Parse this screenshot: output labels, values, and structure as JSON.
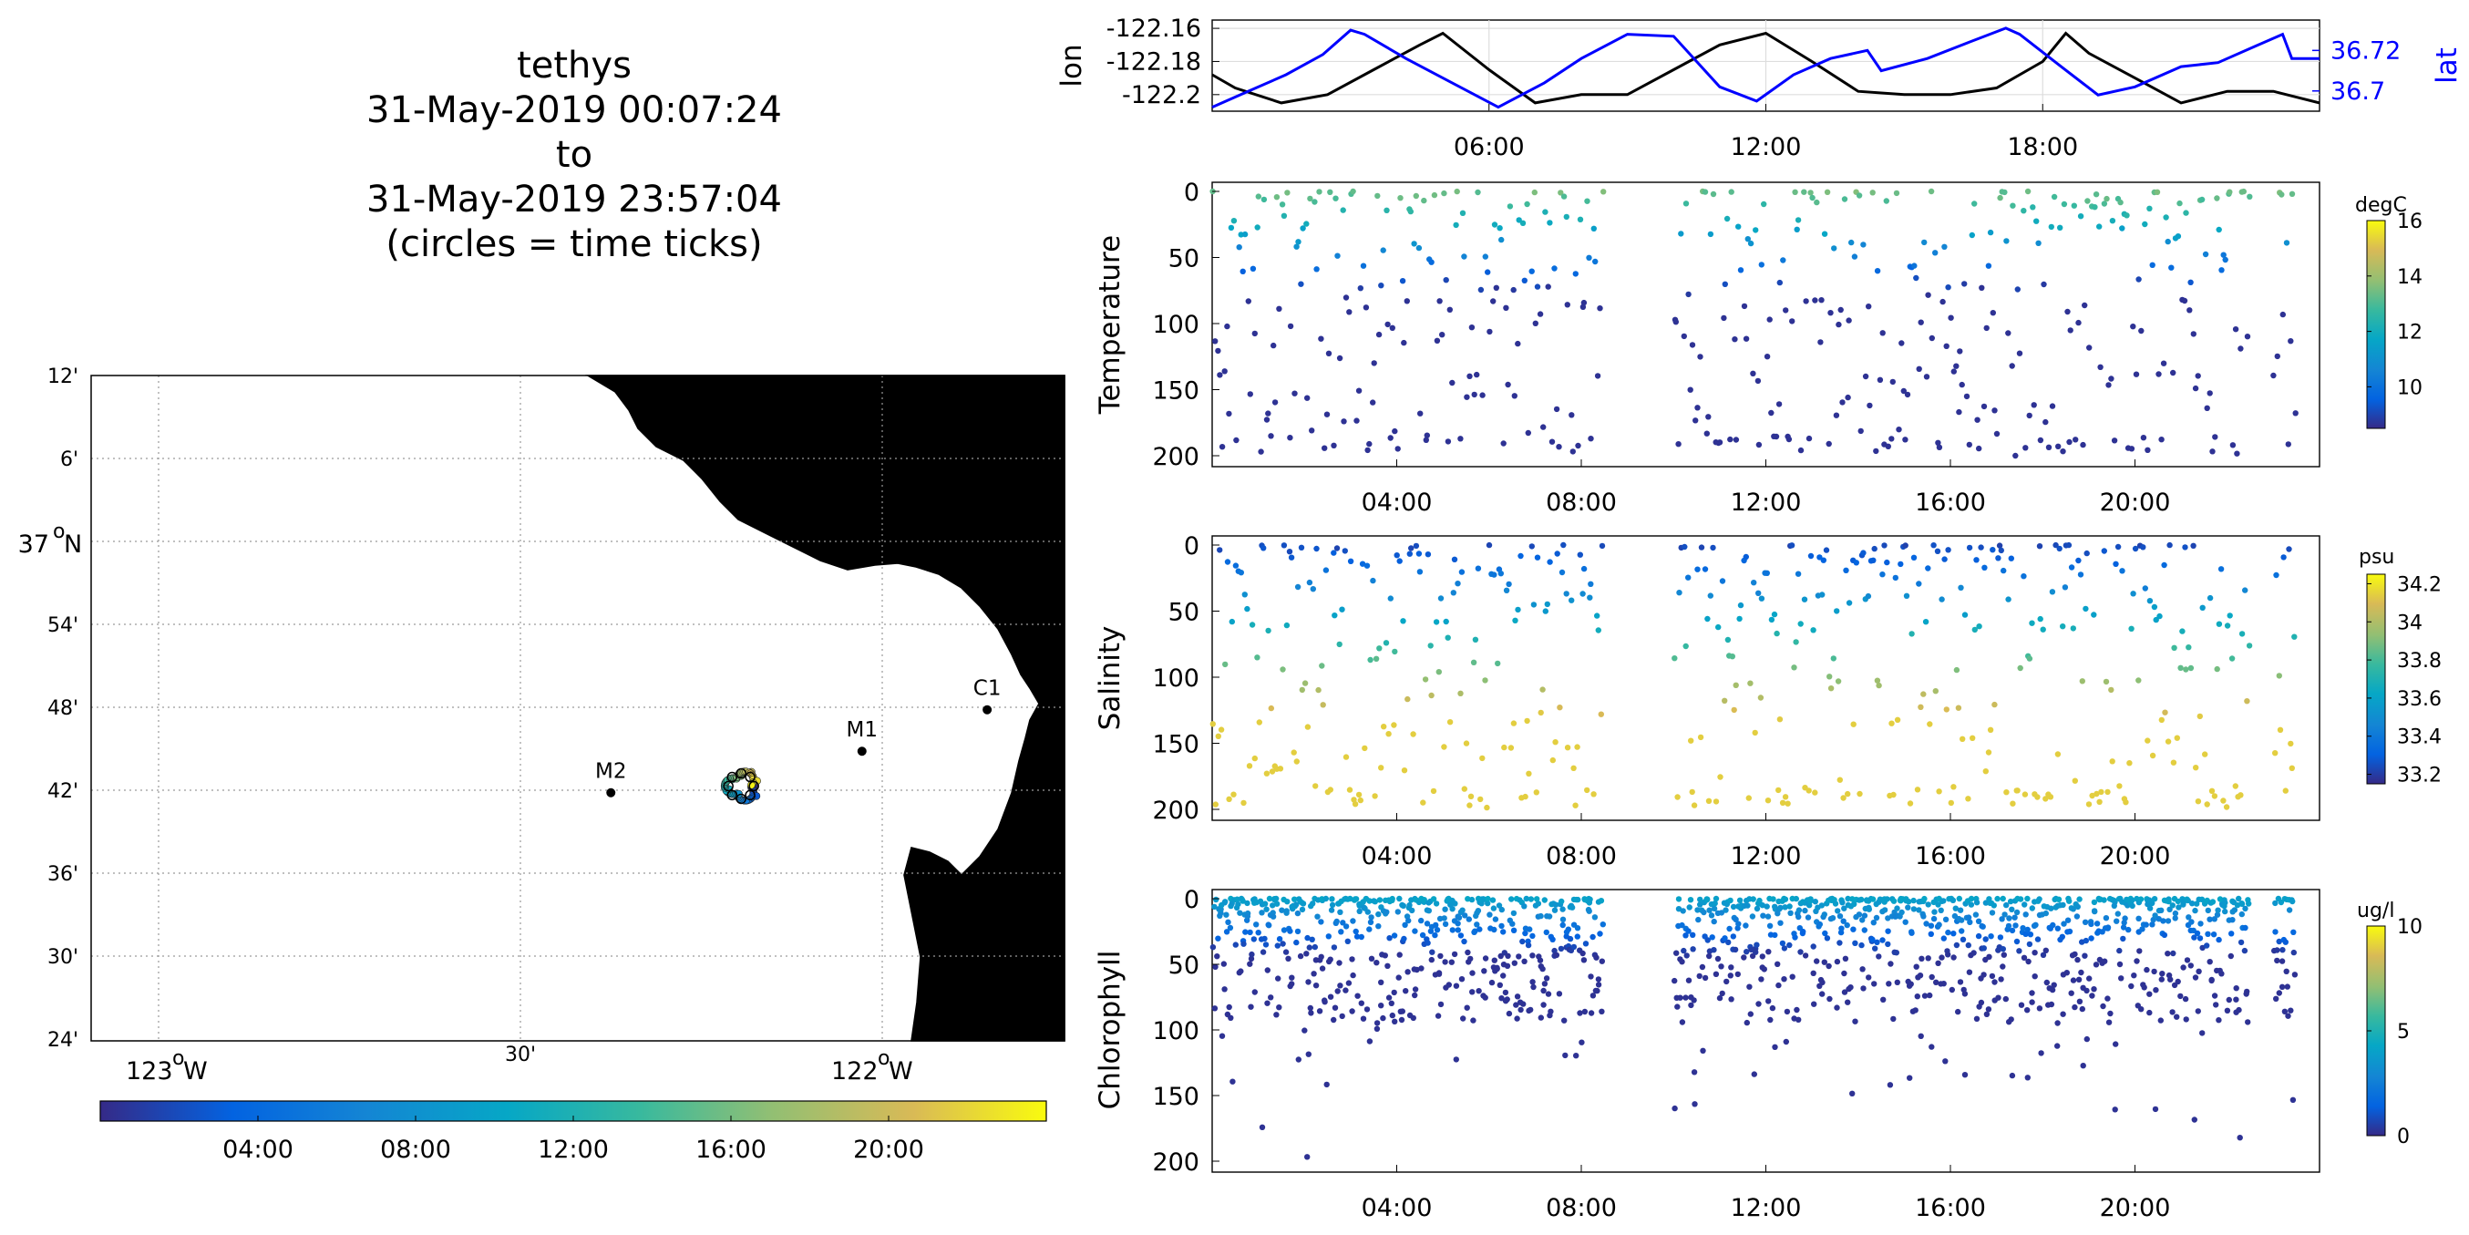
{
  "title": {
    "lines": [
      "tethys",
      "31-May-2019 00:07:24",
      "to",
      "31-May-2019 23:57:04",
      "(circles = time ticks)"
    ]
  },
  "map": {
    "lat_ticks": [
      "12'",
      "6'",
      "37",
      "54'",
      "48'",
      "42'",
      "36'",
      "30'",
      "24'"
    ],
    "lat_deg_sup": "o",
    "lat_hemi": "N",
    "lon_ticks": [
      {
        "label": "123",
        "sup": "o",
        "hemi": "W"
      },
      {
        "label": "30'",
        "sup": "",
        "hemi": ""
      },
      {
        "label": "122",
        "sup": "o",
        "hemi": "W"
      }
    ],
    "stations": [
      {
        "name": "M2",
        "lon": -122.375,
        "lat": 36.697
      },
      {
        "name": "M1",
        "lon": -122.028,
        "lat": 36.747
      },
      {
        "name": "C1",
        "lon": -121.855,
        "lat": 36.797
      }
    ],
    "track_center": {
      "lon": -122.195,
      "lat": 36.705
    },
    "colorbar_ticks": [
      "04:00",
      "08:00",
      "12:00",
      "16:00",
      "20:00"
    ],
    "colors": {
      "land": "#e6e6e6",
      "grid": "#9a9a9a"
    }
  },
  "chart_data": [
    {
      "type": "line",
      "name": "position",
      "ylabel_left": "lon",
      "ylabel_right": "lat",
      "x_tick_labels": [
        "06:00",
        "12:00",
        "18:00"
      ],
      "xlim_hours": [
        0,
        24
      ],
      "ylim_left": [
        -122.21,
        -122.155
      ],
      "ylim_right": [
        36.69,
        36.735
      ],
      "y_ticks_left": [
        "-122.16",
        "-122.18",
        "-122.2"
      ],
      "y_ticks_right": [
        "36.72",
        "36.7"
      ],
      "series": [
        {
          "name": "lon",
          "color": "#000000",
          "x": [
            0,
            0.5,
            1.5,
            2.5,
            3.5,
            4.5,
            5.0,
            6.0,
            7.0,
            8.0,
            9.0,
            10.0,
            11.0,
            12.0,
            13.0,
            14.0,
            15.0,
            16.0,
            17.0,
            18.0,
            18.5,
            19.0,
            20.0,
            21.0,
            22.0,
            23.0,
            24.0
          ],
          "y": [
            -122.188,
            -122.196,
            -122.205,
            -122.2,
            -122.185,
            -122.17,
            -122.163,
            -122.185,
            -122.205,
            -122.2,
            -122.2,
            -122.185,
            -122.17,
            -122.163,
            -122.18,
            -122.198,
            -122.2,
            -122.2,
            -122.196,
            -122.18,
            -122.163,
            -122.175,
            -122.19,
            -122.205,
            -122.198,
            -122.198,
            -122.205
          ]
        },
        {
          "name": "lat",
          "color": "#0000ff",
          "x": [
            0,
            0.8,
            1.6,
            2.4,
            3.0,
            3.3,
            4.2,
            5.2,
            6.2,
            7.2,
            8.0,
            9.0,
            10.0,
            11.0,
            11.8,
            12.6,
            13.4,
            14.2,
            14.5,
            15.5,
            16.4,
            17.2,
            17.5,
            18.4,
            19.2,
            20.0,
            21.0,
            21.8,
            22.6,
            23.2,
            23.4,
            24.0
          ],
          "y": [
            36.692,
            36.7,
            36.708,
            36.718,
            36.73,
            36.728,
            36.716,
            36.704,
            36.692,
            36.704,
            36.716,
            36.728,
            36.727,
            36.702,
            36.695,
            36.708,
            36.716,
            36.72,
            36.71,
            36.716,
            36.724,
            36.731,
            36.728,
            36.712,
            36.698,
            36.702,
            36.712,
            36.714,
            36.722,
            36.728,
            36.716,
            36.716
          ]
        }
      ]
    },
    {
      "type": "scatter",
      "name": "temperature",
      "ylabel": "Temperature",
      "x_tick_labels": [
        "04:00",
        "08:00",
        "12:00",
        "16:00",
        "20:00"
      ],
      "xlim_hours": [
        0,
        24
      ],
      "ylim": [
        0,
        200
      ],
      "y_ticks": [
        "0",
        "50",
        "100",
        "150",
        "200"
      ],
      "colorbar": {
        "unit": "degC",
        "range": [
          8.5,
          16
        ],
        "ticks": [
          "16",
          "14",
          "12",
          "10"
        ]
      },
      "profile_starts_hours": [
        0.0,
        0.5,
        1.0,
        1.5,
        2.0,
        2.5,
        3.0,
        3.5,
        4.0,
        4.5,
        5.0,
        5.5,
        6.0,
        6.5,
        7.0,
        7.5,
        8.0,
        10.0,
        10.5,
        11.0,
        11.5,
        12.0,
        12.5,
        13.0,
        13.5,
        14.0,
        14.5,
        15.0,
        15.5,
        16.0,
        16.5,
        17.0,
        17.5,
        18.0,
        18.5,
        19.0,
        19.5,
        20.0,
        20.5,
        21.0,
        21.5,
        22.0,
        23.0
      ],
      "max_depth": 200
    },
    {
      "type": "scatter",
      "name": "salinity",
      "ylabel": "Salinity",
      "x_tick_labels": [
        "04:00",
        "08:00",
        "12:00",
        "16:00",
        "20:00"
      ],
      "xlim_hours": [
        0,
        24
      ],
      "ylim": [
        0,
        200
      ],
      "y_ticks": [
        "0",
        "50",
        "100",
        "150",
        "200"
      ],
      "colorbar": {
        "unit": "psu",
        "range": [
          33.15,
          34.25
        ],
        "ticks": [
          "34.2",
          "34",
          "33.8",
          "33.6",
          "33.4",
          "33.2"
        ]
      },
      "max_depth": 200
    },
    {
      "type": "scatter",
      "name": "chlorophyll",
      "ylabel": "Chlorophyll",
      "x_tick_labels": [
        "04:00",
        "08:00",
        "12:00",
        "16:00",
        "20:00"
      ],
      "xlim_hours": [
        0,
        24
      ],
      "ylim": [
        0,
        200
      ],
      "y_ticks": [
        "0",
        "50",
        "100",
        "150",
        "200"
      ],
      "colorbar": {
        "unit": "ug/l",
        "range": [
          0,
          10
        ],
        "ticks": [
          "10",
          "5",
          "0"
        ]
      },
      "max_depth": 200
    }
  ]
}
